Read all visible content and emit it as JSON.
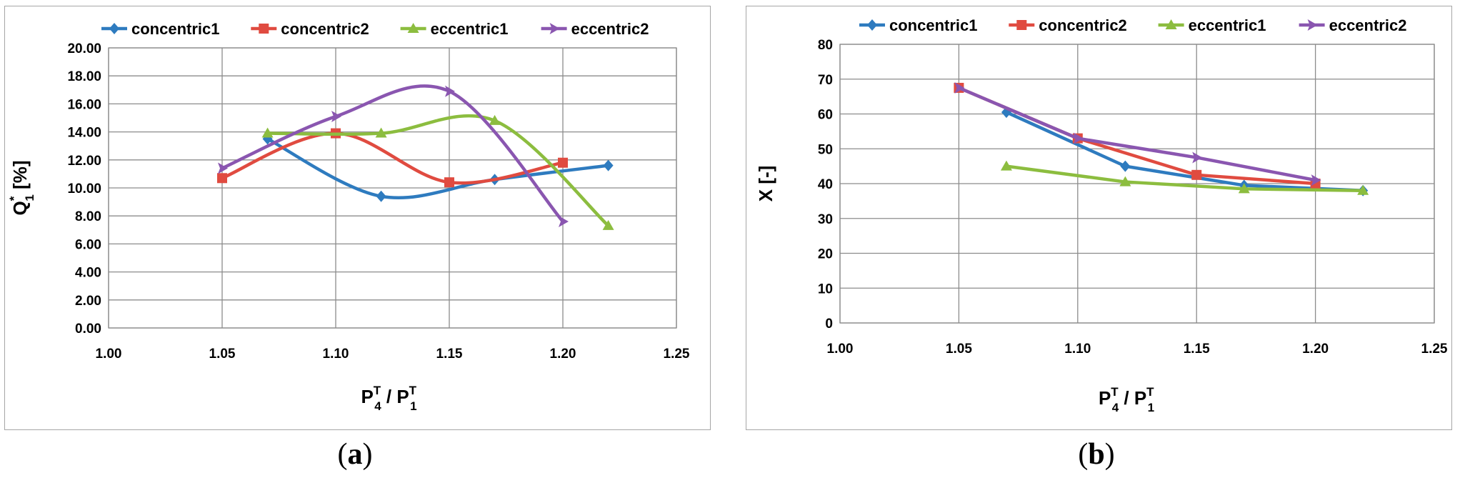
{
  "captions": [
    "a",
    "b"
  ],
  "legend_colors": {
    "concentric1": "#2e7bbf",
    "concentric2": "#e04b40",
    "eccentric1": "#8cbd3f",
    "eccentric2": "#8a56b0"
  },
  "chart_data": [
    {
      "type": "line",
      "smooth": true,
      "legend_position": "top",
      "grid": true,
      "xlim": [
        1.0,
        1.25
      ],
      "xticks": [
        "1.00",
        "1.05",
        "1.10",
        "1.15",
        "1.20",
        "1.25"
      ],
      "ylim": [
        0,
        20
      ],
      "yticks": [
        "0.00",
        "2.00",
        "4.00",
        "6.00",
        "8.00",
        "10.00",
        "12.00",
        "14.00",
        "16.00",
        "18.00",
        "20.00"
      ],
      "xlabel": {
        "p": "P",
        "sup1": "T",
        "sub1": "4",
        "mid": " / P",
        "sup2": "T",
        "sub2": "1"
      },
      "ylabel": {
        "q": "Q",
        "sup": "*",
        "sub": "1",
        "rest": " [%]"
      },
      "series": [
        {
          "name": "concentric1",
          "color": "#2e7bbf",
          "marker": "diamond",
          "x": [
            1.07,
            1.12,
            1.17,
            1.22
          ],
          "y": [
            13.5,
            9.4,
            10.6,
            11.6
          ]
        },
        {
          "name": "concentric2",
          "color": "#e04b40",
          "marker": "square",
          "x": [
            1.05,
            1.1,
            1.15,
            1.2
          ],
          "y": [
            10.7,
            13.9,
            10.4,
            11.8
          ]
        },
        {
          "name": "eccentric1",
          "color": "#8cbd3f",
          "marker": "triangle",
          "x": [
            1.07,
            1.12,
            1.17,
            1.22
          ],
          "y": [
            13.9,
            13.9,
            14.8,
            7.3
          ]
        },
        {
          "name": "eccentric2",
          "color": "#8a56b0",
          "marker": "arrow",
          "x": [
            1.05,
            1.1,
            1.15,
            1.2
          ],
          "y": [
            11.4,
            15.1,
            16.9,
            7.6
          ]
        }
      ]
    },
    {
      "type": "line",
      "smooth": false,
      "legend_position": "top",
      "grid": true,
      "xlim": [
        1.0,
        1.25
      ],
      "xticks": [
        "1.00",
        "1.05",
        "1.10",
        "1.15",
        "1.20",
        "1.25"
      ],
      "ylim": [
        0,
        80
      ],
      "yticks": [
        "0",
        "10",
        "20",
        "30",
        "40",
        "50",
        "60",
        "70",
        "80"
      ],
      "xlabel": {
        "p": "P",
        "sup1": "T",
        "sub1": "4",
        "mid": " / P",
        "sup2": "T",
        "sub2": "1"
      },
      "ylabel": {
        "text": "X [-]"
      },
      "series": [
        {
          "name": "concentric1",
          "color": "#2e7bbf",
          "marker": "diamond",
          "x": [
            1.07,
            1.12,
            1.17,
            1.22
          ],
          "y": [
            60.5,
            45.0,
            39.5,
            38.0
          ]
        },
        {
          "name": "concentric2",
          "color": "#e04b40",
          "marker": "square",
          "x": [
            1.05,
            1.1,
            1.15,
            1.2
          ],
          "y": [
            67.5,
            53.0,
            42.5,
            40.0
          ]
        },
        {
          "name": "eccentric1",
          "color": "#8cbd3f",
          "marker": "triangle",
          "x": [
            1.07,
            1.12,
            1.17,
            1.22
          ],
          "y": [
            45.0,
            40.5,
            38.5,
            38.0
          ]
        },
        {
          "name": "eccentric2",
          "color": "#8a56b0",
          "marker": "arrow",
          "x": [
            1.05,
            1.1,
            1.15,
            1.2
          ],
          "y": [
            67.5,
            53.0,
            47.5,
            41.0
          ]
        }
      ]
    }
  ]
}
